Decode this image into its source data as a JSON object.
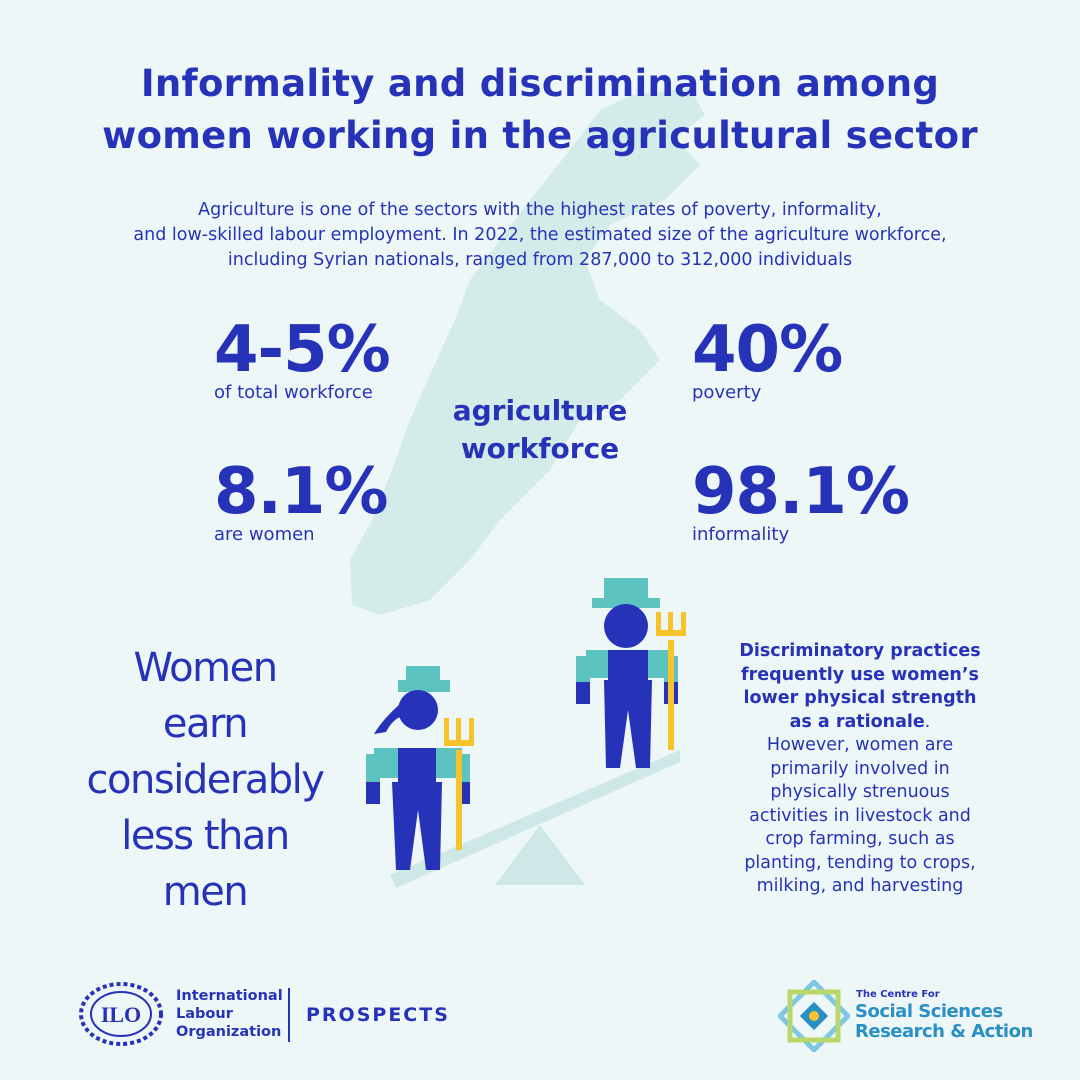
{
  "header": {
    "title_line1": "Informality and discrimination among",
    "title_line2": "women working in the agricultural sector",
    "intro_line1": "Agriculture is one of the sectors with the highest rates of poverty, informality,",
    "intro_line2": "and low-skilled labour employment. In 2022, the estimated size of the agriculture workforce,",
    "intro_line3": "including Syrian nationals, ranged from 287,000 to 312,000 individuals"
  },
  "center_label": {
    "line1": "agriculture",
    "line2": "workforce"
  },
  "stats": [
    {
      "value": "4-5%",
      "label": "of total workforce"
    },
    {
      "value": "40%",
      "label": "poverty"
    },
    {
      "value": "8.1%",
      "label": "are women"
    },
    {
      "value": "98.1%",
      "label": "informality"
    }
  ],
  "earn_text": {
    "line1": "Women",
    "line2": "earn",
    "line3": "considerably",
    "line4": "less than",
    "line5": "men"
  },
  "practices": {
    "bold_line1": "Discriminatory practices",
    "bold_line2": "frequently use women’s",
    "bold_line3": "lower physical strength",
    "bold_line4": "as a rationale",
    "period": ".",
    "line5": "However, women are",
    "line6": "primarily involved in",
    "line7": "physically strenuous",
    "line8": "activities in livestock and",
    "line9": "crop farming, such as",
    "line10": "planting, tending to crops,",
    "line11": "milking, and harvesting"
  },
  "footer": {
    "ilo_badge": "ILO",
    "ilo_line1": "International",
    "ilo_line2": "Labour",
    "ilo_line3": "Organization",
    "prospects": "PROSPECTS",
    "cssra_small": "The Centre For",
    "cssra_line1": "Social Sciences",
    "cssra_line2": "Research & Action"
  },
  "colors": {
    "navy": "#2633b8",
    "teal": "#5cc3c0",
    "map": "#d3ecea",
    "yellow": "#f6c32b",
    "background": "#eef7f7"
  },
  "icons": [
    "lebanon-map",
    "farmer-woman-icon",
    "farmer-man-icon",
    "pitchfork-icon",
    "seesaw-icon",
    "ilo-logo",
    "cssra-logo"
  ]
}
